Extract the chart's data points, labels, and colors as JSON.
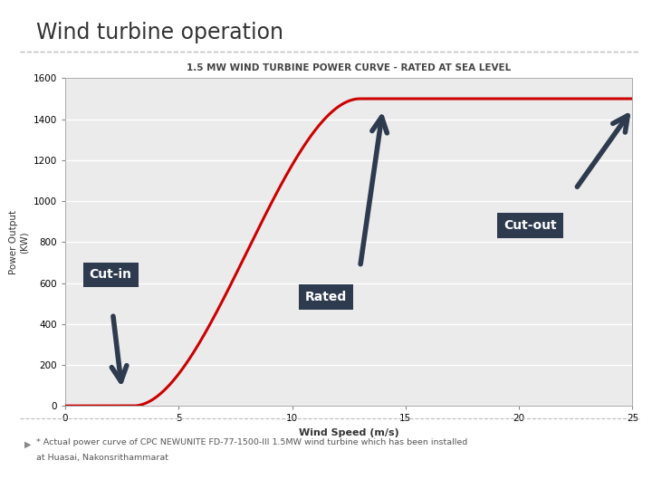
{
  "title": "Wind turbine operation",
  "chart_title": "1.5 MW WIND TURBINE POWER CURVE - RATED AT SEA LEVEL",
  "xlabel": "Wind Speed (m/s)",
  "ylabel": "Power Output\n(KW)",
  "xlim": [
    0,
    25
  ],
  "ylim": [
    0,
    1600
  ],
  "yticks": [
    0,
    200,
    400,
    600,
    800,
    1000,
    1200,
    1400,
    1600
  ],
  "xticks": [
    0,
    5,
    10,
    15,
    20,
    25
  ],
  "bg_color": "#ebebeb",
  "curve_color": "#cc0000",
  "label_bg_color": "#2e3a4e",
  "label_text_color": "#ffffff",
  "footnote_line1": "* Actual power curve of CPC NEWUNITE FD-77-1500-III 1.5MW wind turbine which has been installed",
  "footnote_line2": "at Huasai, Nakonsrithammarat",
  "cut_in_speed": 3,
  "rated_speed": 13,
  "cut_out_speed": 25,
  "rated_power": 1500,
  "fig_width": 7.2,
  "fig_height": 5.4,
  "dpi": 100
}
